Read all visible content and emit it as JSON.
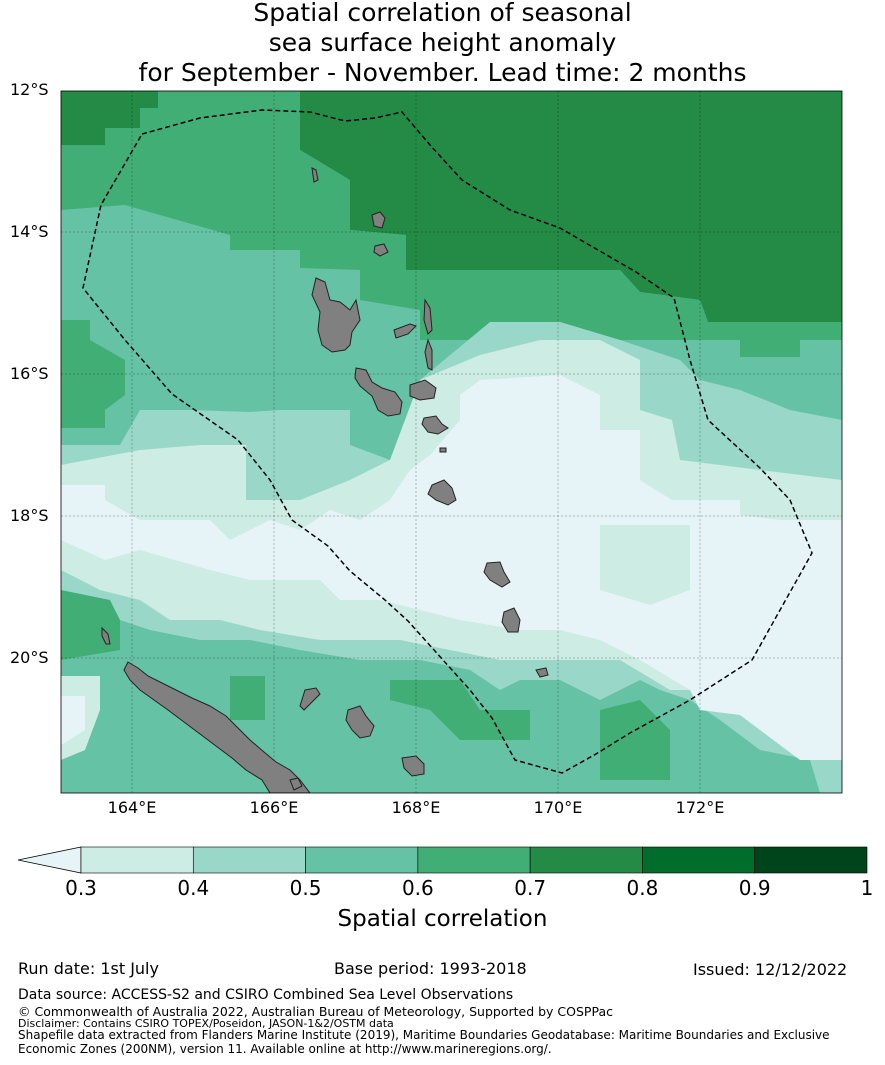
{
  "title_lines": [
    "Spatial correlation of seasonal",
    "sea surface height anomaly",
    "for September - November. Lead time: 2 months"
  ],
  "map": {
    "lat_ticks": [
      "12°S",
      "14°S",
      "16°S",
      "18°S",
      "20°S"
    ],
    "lon_ticks": [
      "164°E",
      "166°E",
      "168°E",
      "170°E",
      "172°E"
    ],
    "lon_range": [
      163,
      174
    ],
    "lat_range": [
      -21.9,
      -12.0
    ],
    "land_color": "#808080",
    "boundary_style": "dashed black"
  },
  "colorbar": {
    "ticks": [
      "0.3",
      "0.4",
      "0.5",
      "0.6",
      "0.7",
      "0.8",
      "0.9",
      "1"
    ],
    "below_color": "#e6f4f8",
    "colors": [
      "#cdece3",
      "#99d8c8",
      "#66c2a4",
      "#41ae76",
      "#238b45",
      "#006d2c",
      "#00441b"
    ],
    "label": "Spatial correlation"
  },
  "footer": {
    "run_date": "Run date: 1st July",
    "base_period": "Base period: 1993-2018",
    "issued": "Issued: 12/12/2022",
    "data_source": "Data source: ACCESS-S2 and CSIRO Combined Sea Level Observations",
    "copyright": "© Commonwealth of Australia 2022, Australian Bureau of Meteorology, Supported by COSPPac",
    "disclaimer": "Disclaimer: Contains CSIRO TOPEX/Poseidon, JASON-1&2/OSTM data",
    "shapefile_1": "Shapefile data extracted from Flanders Marine Institute (2019), Maritime Boundaries Geodatabase: Maritime Boundaries and Exclusive",
    "shapefile_2": "Economic Zones (200NM), version 11. Available online at http://www.marineregions.org/."
  }
}
